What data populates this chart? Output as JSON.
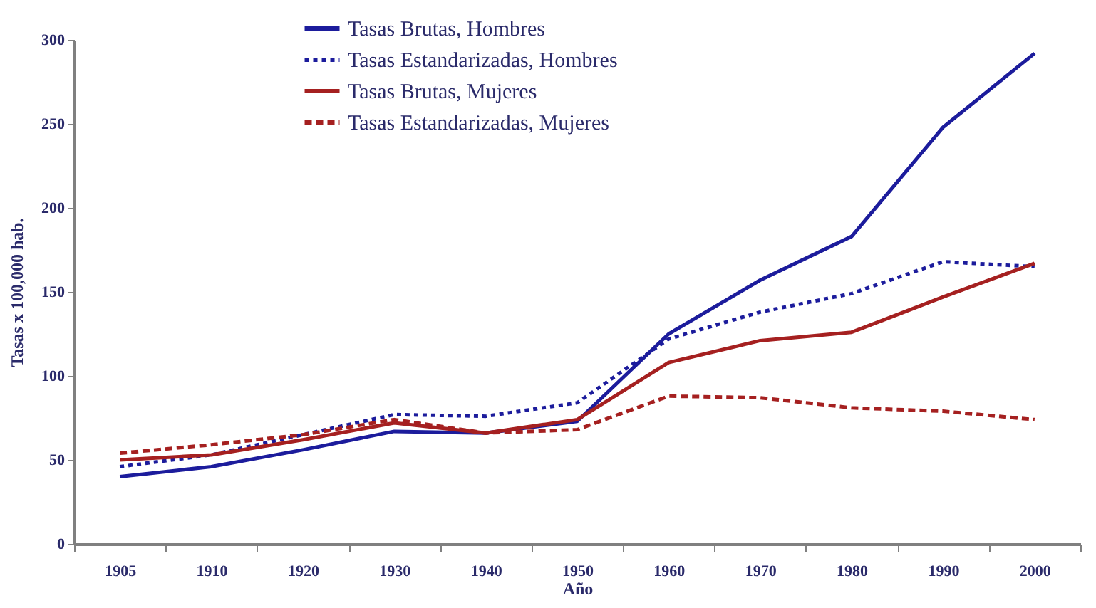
{
  "chart_data": {
    "type": "line",
    "xlabel": "Año",
    "ylabel": "Tasas x 100,000 hab.",
    "categories": [
      "1905",
      "1910",
      "1920",
      "1930",
      "1940",
      "1950",
      "1960",
      "1970",
      "1980",
      "1990",
      "2000"
    ],
    "series": [
      {
        "name": "Tasas Brutas, Hombres",
        "color": "#1c1c9c",
        "line_style": "solid",
        "values": [
          40,
          46,
          56,
          67,
          66,
          73,
          125,
          157,
          183,
          248,
          292
        ]
      },
      {
        "name": "Tasas Estandarizadas, Hombres",
        "color": "#1c1c9c",
        "line_style": "dotted",
        "values": [
          46,
          53,
          65,
          77,
          76,
          84,
          122,
          138,
          149,
          168,
          165
        ]
      },
      {
        "name": "Tasas Brutas, Mujeres",
        "color": "#a52020",
        "line_style": "solid",
        "values": [
          50,
          53,
          62,
          72,
          66,
          74,
          108,
          121,
          126,
          147,
          167
        ]
      },
      {
        "name": "Tasas Estandarizadas, Mujeres",
        "color": "#a52020",
        "line_style": "dashed",
        "values": [
          54,
          59,
          65,
          74,
          66,
          68,
          88,
          87,
          81,
          79,
          74
        ]
      }
    ],
    "ylim": [
      0,
      300
    ],
    "yticks": [
      0,
      50,
      100,
      150,
      200,
      250,
      300
    ],
    "grid": false,
    "legend": "top"
  }
}
